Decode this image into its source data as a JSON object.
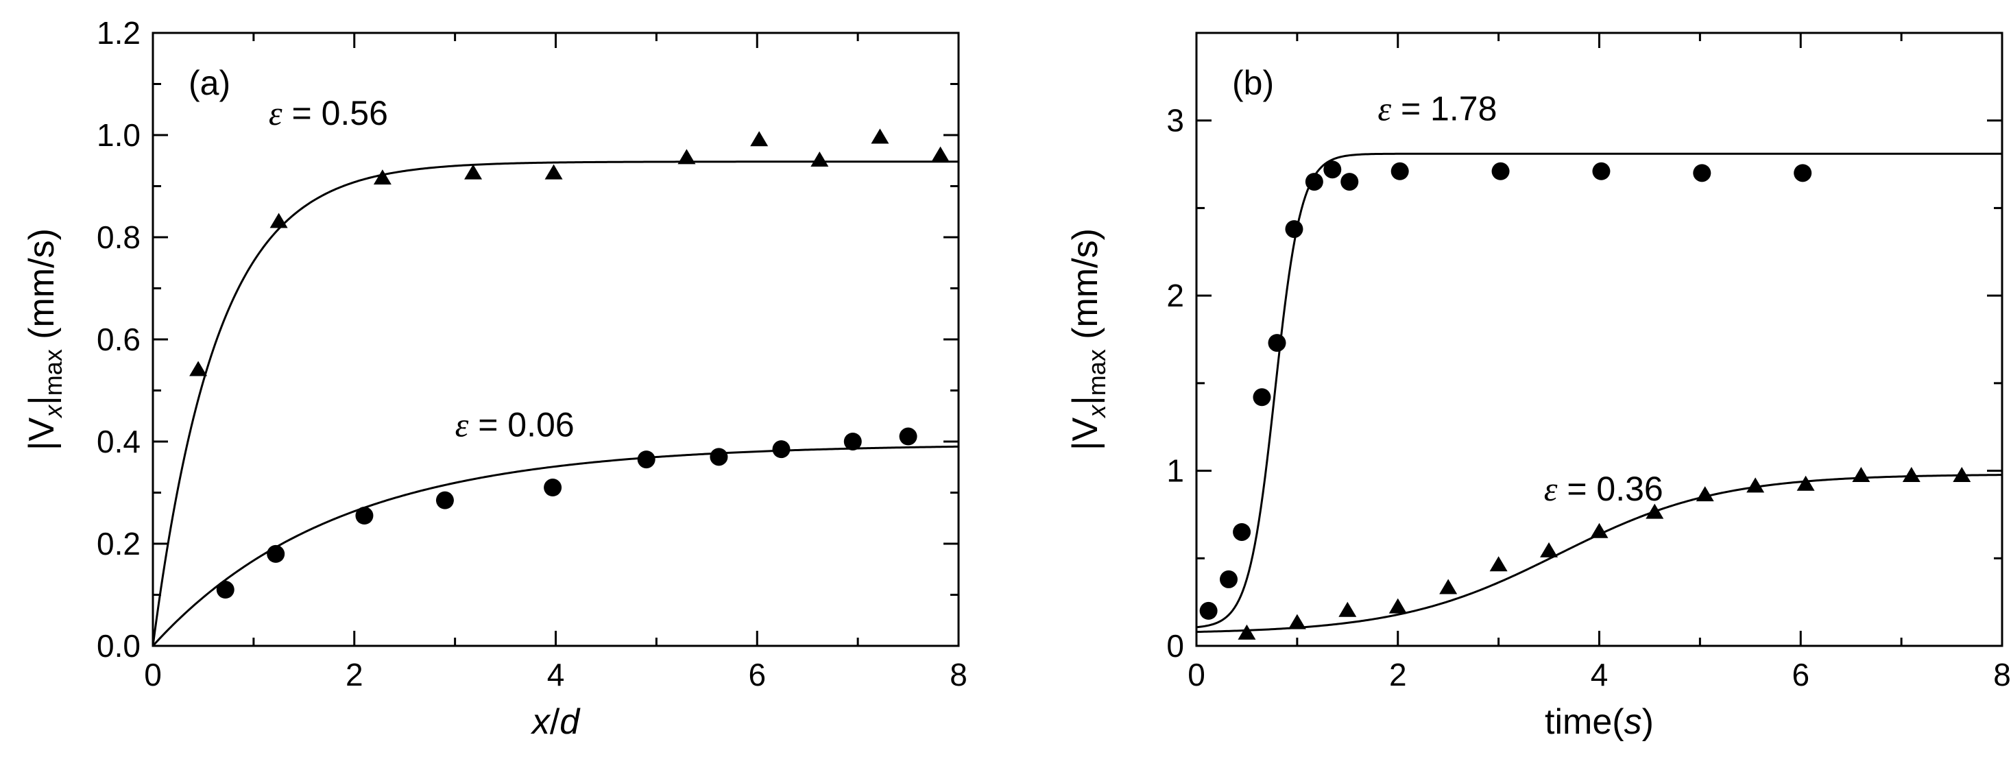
{
  "colors": {
    "ink": "#000000",
    "background": "#ffffff"
  },
  "chart_data": [
    {
      "type": "scatter",
      "panel_label": "(a)",
      "xlabel_parts": [
        "x",
        "/",
        "d"
      ],
      "ylabel_parts": [
        "|V",
        "x",
        "|",
        "max",
        " (mm/s)"
      ],
      "xlim": [
        0,
        8
      ],
      "ylim": [
        0,
        1.2
      ],
      "x_ticks": [
        0,
        2,
        4,
        6,
        8
      ],
      "x_tick_labels": [
        "0",
        "2",
        "4",
        "6",
        "8"
      ],
      "y_ticks": [
        0,
        0.2,
        0.4,
        0.6,
        0.8,
        1.0,
        1.2
      ],
      "y_tick_labels": [
        "0.0",
        "0.2",
        "0.4",
        "0.6",
        "0.8",
        "1.0",
        "1.2"
      ],
      "grid": false,
      "legend": "none",
      "series": [
        {
          "name": "ε = 0.56",
          "label_symbol": "ε",
          "label_value": "= 0.56",
          "marker": "triangle",
          "label_pos": [
            1.15,
            1.02
          ],
          "x": [
            0.45,
            1.25,
            2.28,
            3.18,
            3.98,
            5.3,
            6.02,
            6.62,
            7.22,
            7.82
          ],
          "y": [
            0.54,
            0.83,
            0.915,
            0.925,
            0.925,
            0.955,
            0.99,
            0.95,
            0.995,
            0.96
          ],
          "fit": {
            "model": "exp",
            "A": 0.948,
            "k": 1.58
          }
        },
        {
          "name": "ε = 0.06",
          "label_symbol": "ε",
          "label_value": "= 0.06",
          "marker": "circle",
          "label_pos": [
            3.0,
            0.41
          ],
          "x": [
            0.72,
            1.22,
            2.1,
            2.9,
            3.97,
            4.9,
            5.62,
            6.24,
            6.95,
            7.5
          ],
          "y": [
            0.11,
            0.18,
            0.255,
            0.285,
            0.31,
            0.365,
            0.37,
            0.385,
            0.4,
            0.41
          ],
          "fit": {
            "model": "exp",
            "A": 0.395,
            "k": 0.55
          }
        }
      ]
    },
    {
      "type": "scatter",
      "panel_label": "(b)",
      "xlabel_parts": [
        "time(",
        "s",
        ")"
      ],
      "ylabel_parts": [
        "|V",
        "x",
        "|",
        "max",
        " (mm/s)"
      ],
      "xlim": [
        0,
        8
      ],
      "ylim": [
        0,
        3.5
      ],
      "x_ticks": [
        0,
        2,
        4,
        6,
        8
      ],
      "x_tick_labels": [
        "0",
        "2",
        "4",
        "6",
        "8"
      ],
      "y_ticks": [
        0,
        1,
        2,
        3
      ],
      "y_tick_labels": [
        "0",
        "1",
        "2",
        "3"
      ],
      "grid": false,
      "legend": "none",
      "series": [
        {
          "name": "ε = 1.78",
          "label_symbol": "ε",
          "label_value": "= 1.78",
          "marker": "circle",
          "label_pos": [
            1.8,
            3.0
          ],
          "x": [
            0.12,
            0.32,
            0.45,
            0.65,
            0.8,
            0.97,
            1.17,
            1.35,
            1.52,
            2.02,
            3.02,
            4.02,
            5.02,
            6.02
          ],
          "y": [
            0.2,
            0.38,
            0.65,
            1.42,
            1.73,
            2.38,
            2.65,
            2.72,
            2.65,
            2.71,
            2.71,
            2.71,
            2.7,
            2.7
          ],
          "fit": {
            "model": "logistic",
            "base": 0.1,
            "A": 2.71,
            "x0": 0.78,
            "s": 0.13
          }
        },
        {
          "name": "ε = 0.36",
          "label_symbol": "ε",
          "label_value": "= 0.36",
          "marker": "triangle",
          "label_pos": [
            3.45,
            0.83
          ],
          "x": [
            0.5,
            1.0,
            1.5,
            2.0,
            2.5,
            3.0,
            3.5,
            4.0,
            4.55,
            5.05,
            5.55,
            6.05,
            6.6,
            7.1,
            7.6
          ],
          "y": [
            0.07,
            0.13,
            0.2,
            0.22,
            0.33,
            0.46,
            0.54,
            0.65,
            0.76,
            0.86,
            0.91,
            0.92,
            0.97,
            0.97,
            0.97
          ],
          "fit": {
            "model": "logistic",
            "base": 0.07,
            "A": 0.91,
            "x0": 3.6,
            "s": 0.8
          }
        }
      ]
    }
  ]
}
